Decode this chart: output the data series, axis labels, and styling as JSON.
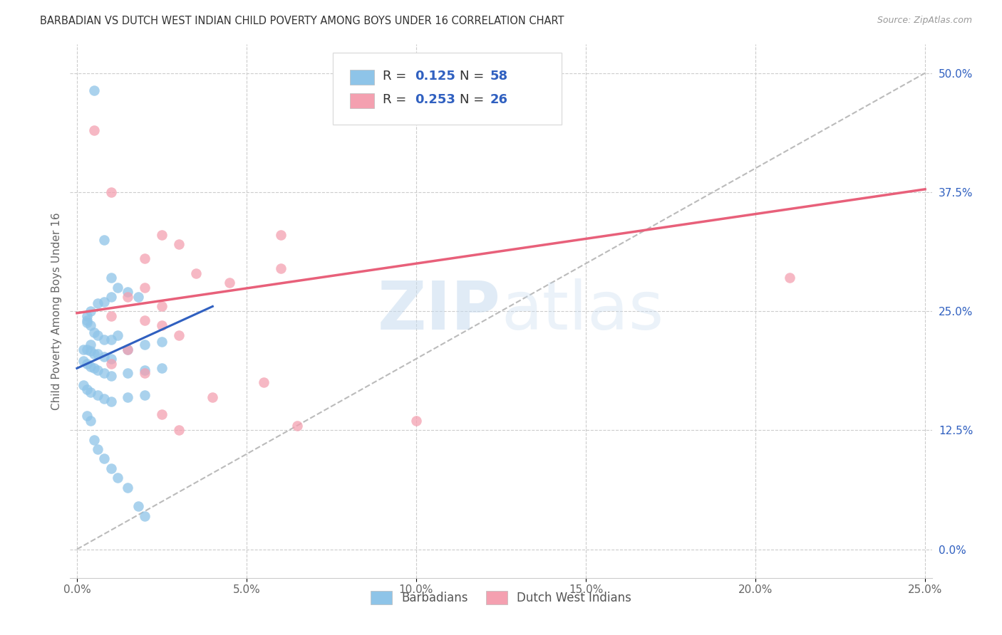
{
  "title": "BARBADIAN VS DUTCH WEST INDIAN CHILD POVERTY AMONG BOYS UNDER 16 CORRELATION CHART",
  "source": "Source: ZipAtlas.com",
  "ylabel": "Child Poverty Among Boys Under 16",
  "xlabel_ticks": [
    "0.0%",
    "5.0%",
    "10.0%",
    "15.0%",
    "20.0%",
    "25.0%"
  ],
  "xlabel_vals": [
    0.0,
    0.05,
    0.1,
    0.15,
    0.2,
    0.25
  ],
  "ylabel_ticks": [
    "0.0%",
    "12.5%",
    "25.0%",
    "37.5%",
    "50.0%"
  ],
  "ylabel_vals": [
    0.0,
    0.125,
    0.25,
    0.375,
    0.5
  ],
  "xlim": [
    -0.002,
    0.252
  ],
  "ylim": [
    -0.03,
    0.53
  ],
  "blue_color": "#8EC4E8",
  "pink_color": "#F4A0B0",
  "blue_line_color": "#3060C0",
  "pink_line_color": "#E8607A",
  "dashed_line_color": "#BBBBBB",
  "accent_color": "#3060C0",
  "R_blue": 0.125,
  "N_blue": 58,
  "R_pink": 0.253,
  "N_pink": 26,
  "watermark_zip": "ZIP",
  "watermark_atlas": "atlas",
  "blue_scatter_x": [
    0.005,
    0.008,
    0.01,
    0.012,
    0.01,
    0.015,
    0.018,
    0.008,
    0.006,
    0.004,
    0.003,
    0.003,
    0.003,
    0.004,
    0.005,
    0.006,
    0.008,
    0.01,
    0.012,
    0.004,
    0.002,
    0.003,
    0.004,
    0.005,
    0.006,
    0.008,
    0.01,
    0.015,
    0.02,
    0.025,
    0.002,
    0.003,
    0.004,
    0.005,
    0.006,
    0.008,
    0.01,
    0.015,
    0.02,
    0.025,
    0.002,
    0.003,
    0.004,
    0.006,
    0.008,
    0.01,
    0.015,
    0.02,
    0.003,
    0.004,
    0.005,
    0.006,
    0.008,
    0.01,
    0.012,
    0.015,
    0.018,
    0.02
  ],
  "blue_scatter_y": [
    0.482,
    0.325,
    0.285,
    0.275,
    0.265,
    0.27,
    0.265,
    0.26,
    0.258,
    0.25,
    0.245,
    0.24,
    0.238,
    0.235,
    0.228,
    0.225,
    0.22,
    0.22,
    0.225,
    0.215,
    0.21,
    0.21,
    0.208,
    0.205,
    0.205,
    0.202,
    0.2,
    0.21,
    0.215,
    0.218,
    0.198,
    0.195,
    0.192,
    0.19,
    0.188,
    0.185,
    0.182,
    0.185,
    0.188,
    0.19,
    0.172,
    0.168,
    0.165,
    0.162,
    0.158,
    0.155,
    0.16,
    0.162,
    0.14,
    0.135,
    0.115,
    0.105,
    0.095,
    0.085,
    0.075,
    0.065,
    0.045,
    0.035
  ],
  "pink_scatter_x": [
    0.005,
    0.01,
    0.025,
    0.03,
    0.02,
    0.06,
    0.035,
    0.045,
    0.02,
    0.06,
    0.015,
    0.025,
    0.01,
    0.02,
    0.025,
    0.03,
    0.015,
    0.01,
    0.02,
    0.055,
    0.04,
    0.025,
    0.065,
    0.03,
    0.21,
    0.1
  ],
  "pink_scatter_y": [
    0.44,
    0.375,
    0.33,
    0.32,
    0.305,
    0.295,
    0.29,
    0.28,
    0.275,
    0.33,
    0.265,
    0.255,
    0.245,
    0.24,
    0.235,
    0.225,
    0.21,
    0.195,
    0.185,
    0.175,
    0.16,
    0.142,
    0.13,
    0.125,
    0.285,
    0.135
  ],
  "blue_line_x0": 0.0,
  "blue_line_x1": 0.04,
  "blue_line_y0": 0.19,
  "blue_line_y1": 0.255,
  "pink_line_x0": 0.0,
  "pink_line_x1": 0.25,
  "pink_line_y0": 0.248,
  "pink_line_y1": 0.378
}
